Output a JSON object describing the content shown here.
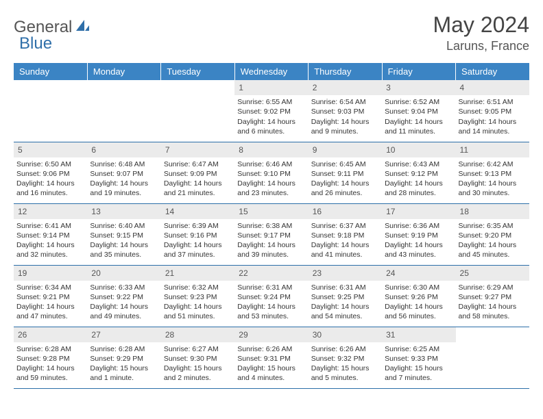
{
  "logo": {
    "part1": "General",
    "part2": "Blue"
  },
  "title": "May 2024",
  "location": "Laruns, France",
  "colors": {
    "header_bg": "#3b84c4",
    "header_text": "#ffffff",
    "daynum_bg": "#ebebeb",
    "row_border": "#2a6ea8",
    "logo_blue": "#2f6fa9",
    "logo_gray": "#555555"
  },
  "weekdays": [
    "Sunday",
    "Monday",
    "Tuesday",
    "Wednesday",
    "Thursday",
    "Friday",
    "Saturday"
  ],
  "weeks": [
    [
      null,
      null,
      null,
      {
        "n": "1",
        "sr": "Sunrise: 6:55 AM",
        "ss": "Sunset: 9:02 PM",
        "d1": "Daylight: 14 hours",
        "d2": "and 6 minutes."
      },
      {
        "n": "2",
        "sr": "Sunrise: 6:54 AM",
        "ss": "Sunset: 9:03 PM",
        "d1": "Daylight: 14 hours",
        "d2": "and 9 minutes."
      },
      {
        "n": "3",
        "sr": "Sunrise: 6:52 AM",
        "ss": "Sunset: 9:04 PM",
        "d1": "Daylight: 14 hours",
        "d2": "and 11 minutes."
      },
      {
        "n": "4",
        "sr": "Sunrise: 6:51 AM",
        "ss": "Sunset: 9:05 PM",
        "d1": "Daylight: 14 hours",
        "d2": "and 14 minutes."
      }
    ],
    [
      {
        "n": "5",
        "sr": "Sunrise: 6:50 AM",
        "ss": "Sunset: 9:06 PM",
        "d1": "Daylight: 14 hours",
        "d2": "and 16 minutes."
      },
      {
        "n": "6",
        "sr": "Sunrise: 6:48 AM",
        "ss": "Sunset: 9:07 PM",
        "d1": "Daylight: 14 hours",
        "d2": "and 19 minutes."
      },
      {
        "n": "7",
        "sr": "Sunrise: 6:47 AM",
        "ss": "Sunset: 9:09 PM",
        "d1": "Daylight: 14 hours",
        "d2": "and 21 minutes."
      },
      {
        "n": "8",
        "sr": "Sunrise: 6:46 AM",
        "ss": "Sunset: 9:10 PM",
        "d1": "Daylight: 14 hours",
        "d2": "and 23 minutes."
      },
      {
        "n": "9",
        "sr": "Sunrise: 6:45 AM",
        "ss": "Sunset: 9:11 PM",
        "d1": "Daylight: 14 hours",
        "d2": "and 26 minutes."
      },
      {
        "n": "10",
        "sr": "Sunrise: 6:43 AM",
        "ss": "Sunset: 9:12 PM",
        "d1": "Daylight: 14 hours",
        "d2": "and 28 minutes."
      },
      {
        "n": "11",
        "sr": "Sunrise: 6:42 AM",
        "ss": "Sunset: 9:13 PM",
        "d1": "Daylight: 14 hours",
        "d2": "and 30 minutes."
      }
    ],
    [
      {
        "n": "12",
        "sr": "Sunrise: 6:41 AM",
        "ss": "Sunset: 9:14 PM",
        "d1": "Daylight: 14 hours",
        "d2": "and 32 minutes."
      },
      {
        "n": "13",
        "sr": "Sunrise: 6:40 AM",
        "ss": "Sunset: 9:15 PM",
        "d1": "Daylight: 14 hours",
        "d2": "and 35 minutes."
      },
      {
        "n": "14",
        "sr": "Sunrise: 6:39 AM",
        "ss": "Sunset: 9:16 PM",
        "d1": "Daylight: 14 hours",
        "d2": "and 37 minutes."
      },
      {
        "n": "15",
        "sr": "Sunrise: 6:38 AM",
        "ss": "Sunset: 9:17 PM",
        "d1": "Daylight: 14 hours",
        "d2": "and 39 minutes."
      },
      {
        "n": "16",
        "sr": "Sunrise: 6:37 AM",
        "ss": "Sunset: 9:18 PM",
        "d1": "Daylight: 14 hours",
        "d2": "and 41 minutes."
      },
      {
        "n": "17",
        "sr": "Sunrise: 6:36 AM",
        "ss": "Sunset: 9:19 PM",
        "d1": "Daylight: 14 hours",
        "d2": "and 43 minutes."
      },
      {
        "n": "18",
        "sr": "Sunrise: 6:35 AM",
        "ss": "Sunset: 9:20 PM",
        "d1": "Daylight: 14 hours",
        "d2": "and 45 minutes."
      }
    ],
    [
      {
        "n": "19",
        "sr": "Sunrise: 6:34 AM",
        "ss": "Sunset: 9:21 PM",
        "d1": "Daylight: 14 hours",
        "d2": "and 47 minutes."
      },
      {
        "n": "20",
        "sr": "Sunrise: 6:33 AM",
        "ss": "Sunset: 9:22 PM",
        "d1": "Daylight: 14 hours",
        "d2": "and 49 minutes."
      },
      {
        "n": "21",
        "sr": "Sunrise: 6:32 AM",
        "ss": "Sunset: 9:23 PM",
        "d1": "Daylight: 14 hours",
        "d2": "and 51 minutes."
      },
      {
        "n": "22",
        "sr": "Sunrise: 6:31 AM",
        "ss": "Sunset: 9:24 PM",
        "d1": "Daylight: 14 hours",
        "d2": "and 53 minutes."
      },
      {
        "n": "23",
        "sr": "Sunrise: 6:31 AM",
        "ss": "Sunset: 9:25 PM",
        "d1": "Daylight: 14 hours",
        "d2": "and 54 minutes."
      },
      {
        "n": "24",
        "sr": "Sunrise: 6:30 AM",
        "ss": "Sunset: 9:26 PM",
        "d1": "Daylight: 14 hours",
        "d2": "and 56 minutes."
      },
      {
        "n": "25",
        "sr": "Sunrise: 6:29 AM",
        "ss": "Sunset: 9:27 PM",
        "d1": "Daylight: 14 hours",
        "d2": "and 58 minutes."
      }
    ],
    [
      {
        "n": "26",
        "sr": "Sunrise: 6:28 AM",
        "ss": "Sunset: 9:28 PM",
        "d1": "Daylight: 14 hours",
        "d2": "and 59 minutes."
      },
      {
        "n": "27",
        "sr": "Sunrise: 6:28 AM",
        "ss": "Sunset: 9:29 PM",
        "d1": "Daylight: 15 hours",
        "d2": "and 1 minute."
      },
      {
        "n": "28",
        "sr": "Sunrise: 6:27 AM",
        "ss": "Sunset: 9:30 PM",
        "d1": "Daylight: 15 hours",
        "d2": "and 2 minutes."
      },
      {
        "n": "29",
        "sr": "Sunrise: 6:26 AM",
        "ss": "Sunset: 9:31 PM",
        "d1": "Daylight: 15 hours",
        "d2": "and 4 minutes."
      },
      {
        "n": "30",
        "sr": "Sunrise: 6:26 AM",
        "ss": "Sunset: 9:32 PM",
        "d1": "Daylight: 15 hours",
        "d2": "and 5 minutes."
      },
      {
        "n": "31",
        "sr": "Sunrise: 6:25 AM",
        "ss": "Sunset: 9:33 PM",
        "d1": "Daylight: 15 hours",
        "d2": "and 7 minutes."
      },
      null
    ]
  ]
}
